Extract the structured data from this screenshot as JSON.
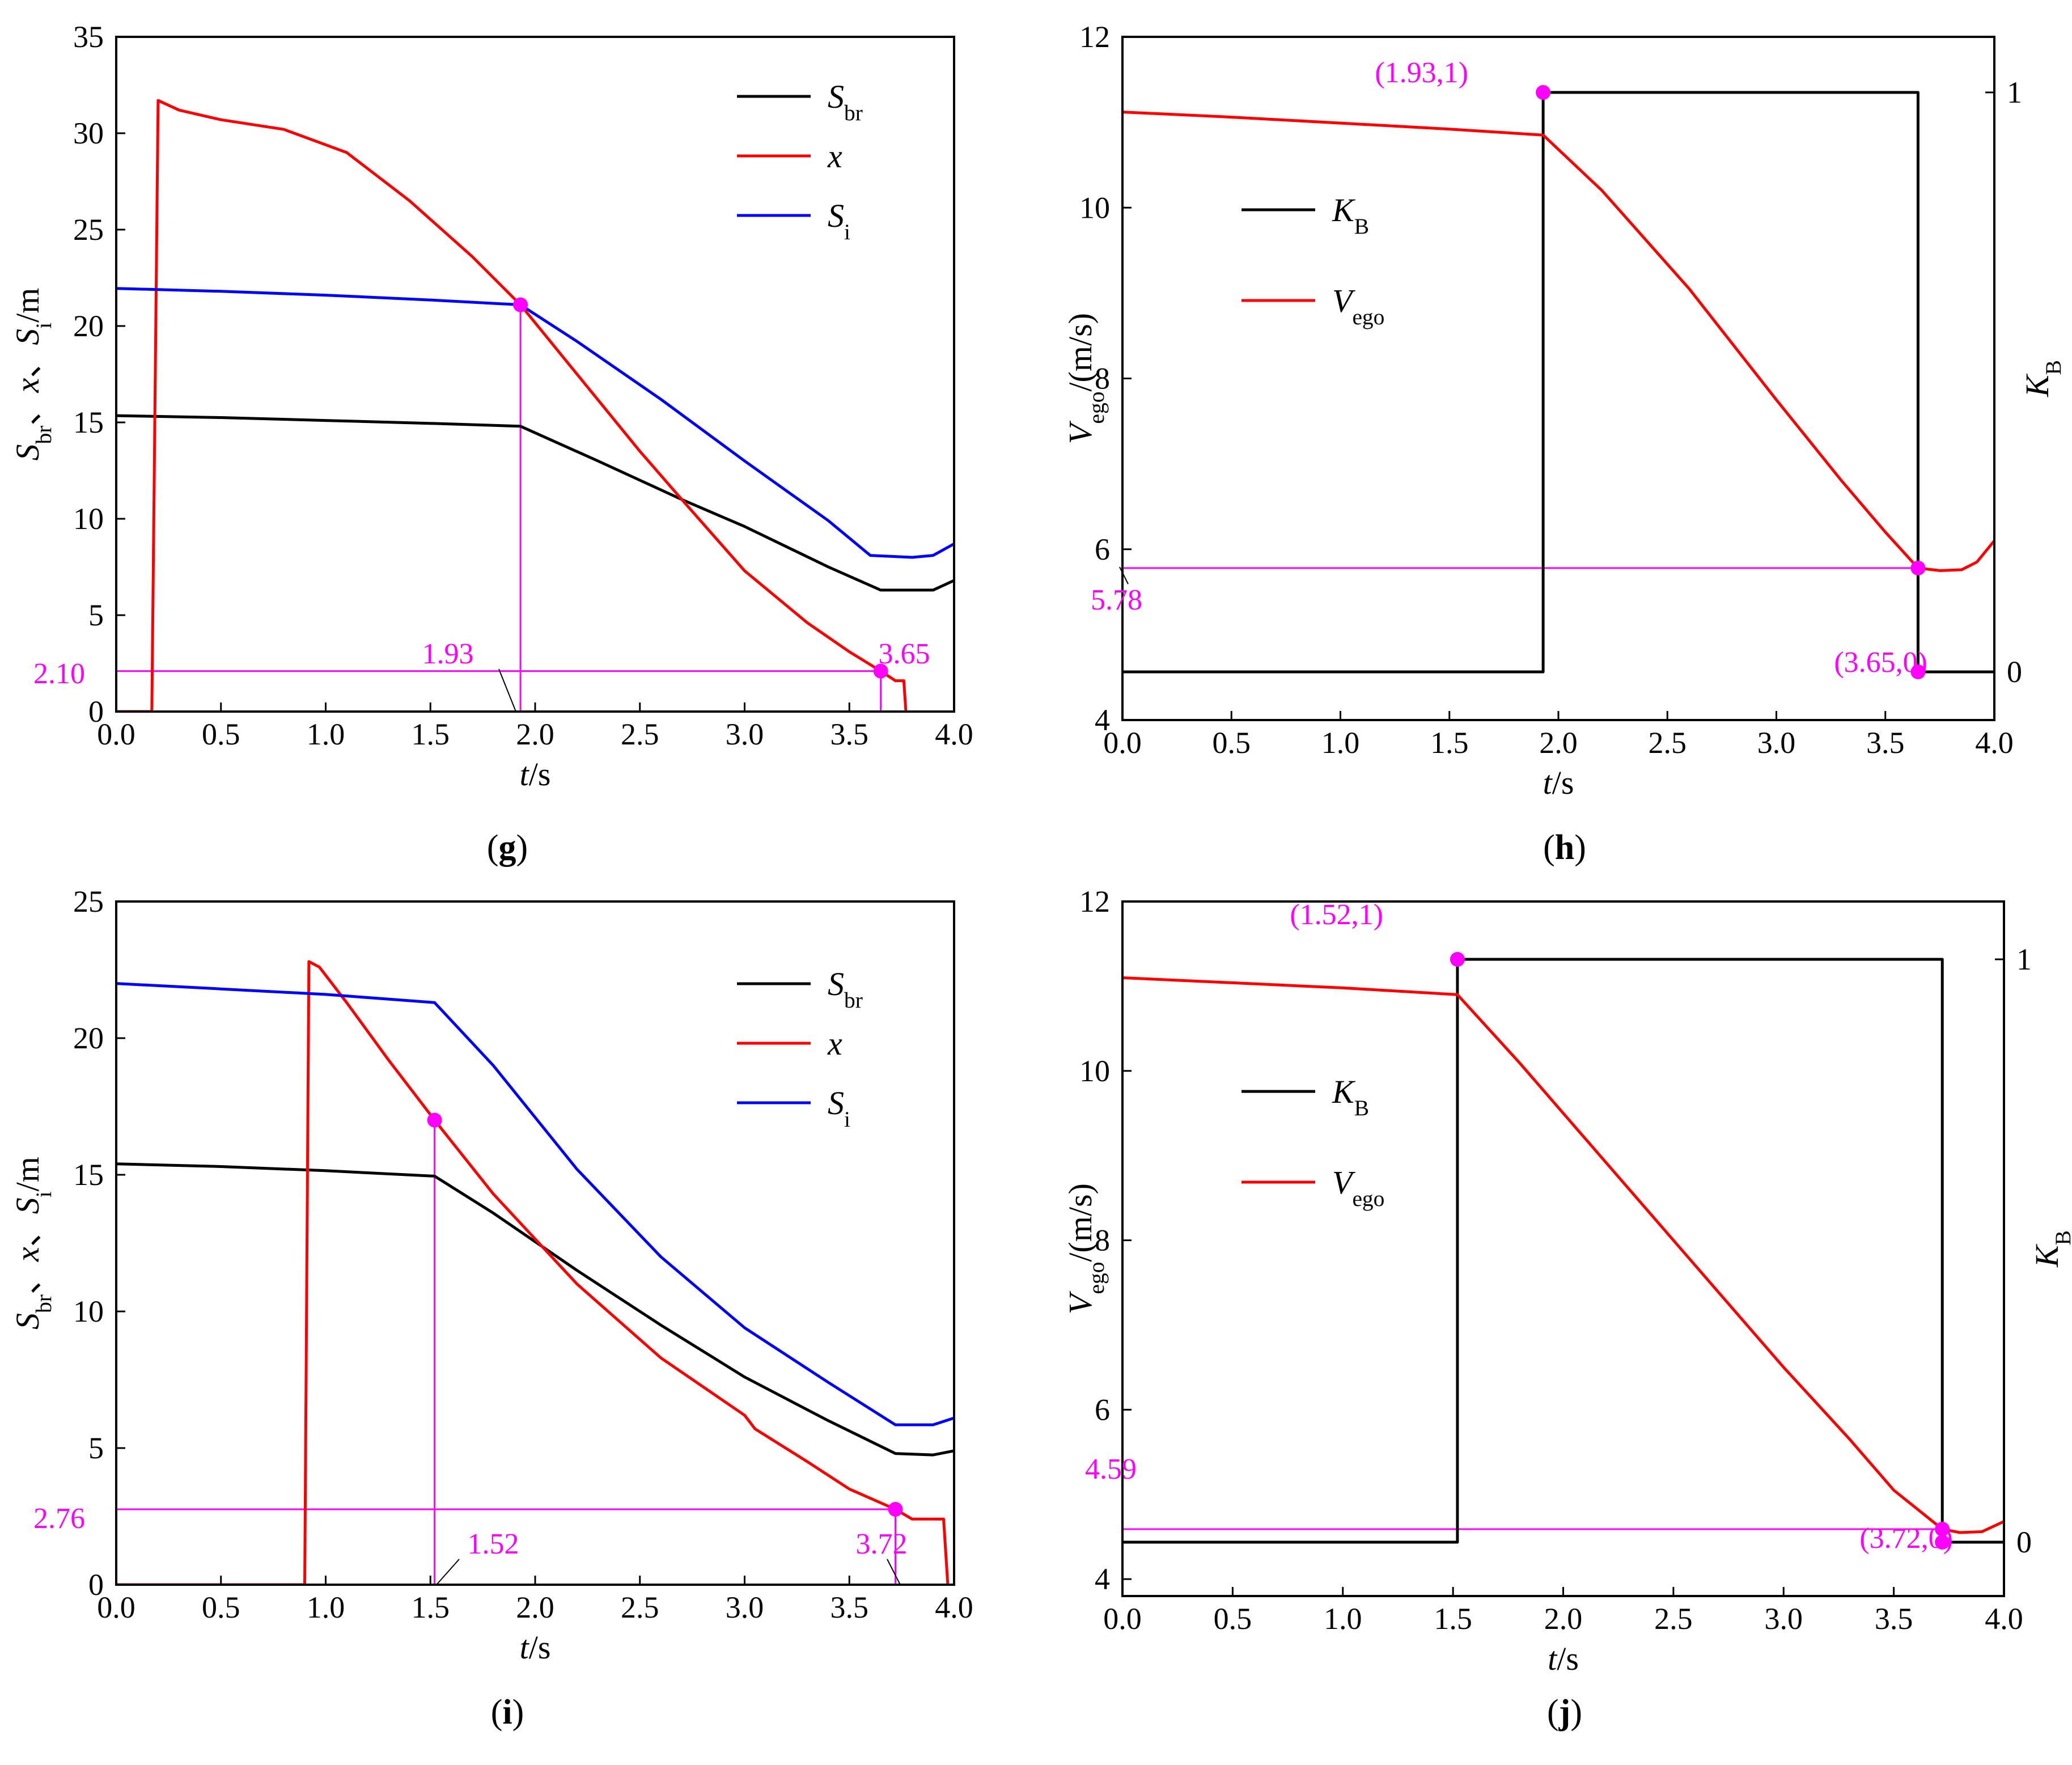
{
  "figure": {
    "colors": {
      "black": "#000000",
      "red": "#ff0000",
      "blue": "#0000ff",
      "magenta": "#ff00ff"
    }
  },
  "chart_data": [
    {
      "id": "g",
      "type": "line",
      "panel_label": {
        "open": "(",
        "letter": "g",
        "close": ")"
      },
      "xlabel": {
        "var": "t",
        "unit": "/s"
      },
      "ylabel": {
        "p1": "S",
        "s1": "br",
        "p2": "、",
        "p3": "x",
        "p4": "、",
        "p5": "S",
        "s5": "i",
        "p6": "/m"
      },
      "xlim": [
        0,
        4
      ],
      "ylim": [
        0,
        35
      ],
      "xticks": [
        "0.0",
        "0.5",
        "1.0",
        "1.5",
        "2.0",
        "2.5",
        "3.0",
        "3.5",
        "4.0"
      ],
      "yticks": [
        "0",
        "5",
        "10",
        "15",
        "20",
        "25",
        "30",
        "35"
      ],
      "legend": {
        "position": "top-right",
        "entries": [
          {
            "main": "S",
            "sub": "br",
            "italic": true,
            "color": "#000000"
          },
          {
            "main": "x",
            "sub": "",
            "italic": true,
            "color": "#ff0000"
          },
          {
            "main": "S",
            "sub": "i",
            "italic": true,
            "color": "#0000ff"
          }
        ]
      },
      "series": [
        {
          "name": "S_br",
          "color": "#000000",
          "points": [
            [
              0,
              15.35
            ],
            [
              0.5,
              15.25
            ],
            [
              1.0,
              15.1
            ],
            [
              1.5,
              14.95
            ],
            [
              1.93,
              14.8
            ],
            [
              2.3,
              13.0
            ],
            [
              2.7,
              11.0
            ],
            [
              3.0,
              9.6
            ],
            [
              3.4,
              7.5
            ],
            [
              3.65,
              6.3
            ],
            [
              3.9,
              6.3
            ],
            [
              4.0,
              6.8
            ]
          ]
        },
        {
          "name": "x",
          "color": "#ff0000",
          "points": [
            [
              0,
              0
            ],
            [
              0.17,
              0
            ],
            [
              0.2,
              31.7
            ],
            [
              0.3,
              31.2
            ],
            [
              0.5,
              30.7
            ],
            [
              0.8,
              30.2
            ],
            [
              1.1,
              29.0
            ],
            [
              1.4,
              26.5
            ],
            [
              1.7,
              23.6
            ],
            [
              1.93,
              21.1
            ],
            [
              2.2,
              17.5
            ],
            [
              2.5,
              13.5
            ],
            [
              2.7,
              11.0
            ],
            [
              3.0,
              7.3
            ],
            [
              3.3,
              4.6
            ],
            [
              3.5,
              3.1
            ],
            [
              3.65,
              2.1
            ],
            [
              3.72,
              1.6
            ],
            [
              3.76,
              1.6
            ],
            [
              3.77,
              0
            ]
          ]
        },
        {
          "name": "S_i",
          "color": "#0000ff",
          "points": [
            [
              0,
              21.95
            ],
            [
              0.5,
              21.8
            ],
            [
              1.0,
              21.6
            ],
            [
              1.5,
              21.35
            ],
            [
              1.93,
              21.1
            ],
            [
              2.2,
              19.2
            ],
            [
              2.6,
              16.2
            ],
            [
              3.0,
              13.0
            ],
            [
              3.4,
              9.9
            ],
            [
              3.6,
              8.1
            ],
            [
              3.8,
              8.0
            ],
            [
              3.9,
              8.1
            ],
            [
              4.0,
              8.7
            ]
          ]
        }
      ],
      "markers": [
        {
          "x": 1.93,
          "y": 21.1
        },
        {
          "x": 3.65,
          "y": 2.1
        }
      ],
      "guides": [
        {
          "from": [
            1.93,
            0
          ],
          "to": [
            1.93,
            21.1
          ]
        },
        {
          "from": [
            0,
            2.1
          ],
          "to": [
            3.65,
            2.1
          ]
        },
        {
          "from": [
            3.65,
            0
          ],
          "to": [
            3.65,
            2.1
          ]
        }
      ],
      "annotations": [
        {
          "text": "1.93"
        },
        {
          "text": "3.65"
        },
        {
          "text": "2.10"
        }
      ]
    },
    {
      "id": "h",
      "type": "line",
      "panel_label": {
        "open": "(",
        "letter": "h",
        "close": ")"
      },
      "xlabel": {
        "var": "t",
        "unit": "/s"
      },
      "ylabel_left": {
        "p1": "V",
        "s1": "ego",
        "p2": "/(m/s)"
      },
      "ylabel_right": {
        "p1": "K",
        "s1": "B"
      },
      "xlim": [
        0,
        4
      ],
      "ylim": [
        4,
        12
      ],
      "ylim_right": [
        -0.1,
        1.1
      ],
      "xticks": [
        "0.0",
        "0.5",
        "1.0",
        "1.5",
        "2.0",
        "2.5",
        "3.0",
        "3.5",
        "4.0"
      ],
      "yticks": [
        "4",
        "6",
        "8",
        "10",
        "12"
      ],
      "yticks_right": [
        "0",
        "1"
      ],
      "legend": {
        "position": "left",
        "entries": [
          {
            "main": "K",
            "sub": "B",
            "italic": true,
            "color": "#000000"
          },
          {
            "main": "V",
            "sub": "ego",
            "italic": true,
            "color": "#ff0000"
          }
        ]
      },
      "series": [
        {
          "name": "K_B",
          "axis": "right",
          "color": "#000000",
          "points": [
            [
              0,
              0
            ],
            [
              1.93,
              0
            ],
            [
              1.93,
              1
            ],
            [
              3.65,
              1
            ],
            [
              3.65,
              0
            ],
            [
              4.0,
              0
            ]
          ]
        },
        {
          "name": "V_ego",
          "axis": "left",
          "color": "#ff0000",
          "points": [
            [
              0,
              11.12
            ],
            [
              0.5,
              11.06
            ],
            [
              1.0,
              10.99
            ],
            [
              1.5,
              10.92
            ],
            [
              1.93,
              10.85
            ],
            [
              2.2,
              10.2
            ],
            [
              2.6,
              9.05
            ],
            [
              3.0,
              7.75
            ],
            [
              3.3,
              6.8
            ],
            [
              3.5,
              6.2
            ],
            [
              3.65,
              5.78
            ],
            [
              3.75,
              5.75
            ],
            [
              3.85,
              5.76
            ],
            [
              3.92,
              5.85
            ],
            [
              4.0,
              6.1
            ]
          ]
        }
      ],
      "markers": [
        {
          "x": 1.93,
          "y": 1,
          "axis": "right"
        },
        {
          "x": 3.65,
          "y": 5.78,
          "axis": "left"
        },
        {
          "x": 3.65,
          "y": 0,
          "axis": "right"
        }
      ],
      "guides": [
        {
          "from": [
            0,
            5.78
          ],
          "to": [
            3.65,
            5.78
          ]
        }
      ],
      "annotations": [
        {
          "text": "(1.93,1)"
        },
        {
          "text": "(3.65,0)"
        },
        {
          "text": "5.78"
        }
      ]
    },
    {
      "id": "i",
      "type": "line",
      "panel_label": {
        "open": "(",
        "letter": "i",
        "close": ")"
      },
      "xlabel": {
        "var": "t",
        "unit": "/s"
      },
      "ylabel": {
        "p1": "S",
        "s1": "br",
        "p2": "、",
        "p3": "x",
        "p4": "、",
        "p5": "S",
        "s5": "i",
        "p6": "/m"
      },
      "xlim": [
        0,
        4
      ],
      "ylim": [
        0,
        25
      ],
      "xticks": [
        "0.0",
        "0.5",
        "1.0",
        "1.5",
        "2.0",
        "2.5",
        "3.0",
        "3.5",
        "4.0"
      ],
      "yticks": [
        "0",
        "5",
        "10",
        "15",
        "20",
        "25"
      ],
      "legend": {
        "position": "top-right",
        "entries": [
          {
            "main": "S",
            "sub": "br",
            "italic": true,
            "color": "#000000"
          },
          {
            "main": "x",
            "sub": "",
            "italic": true,
            "color": "#ff0000"
          },
          {
            "main": "S",
            "sub": "i",
            "italic": true,
            "color": "#0000ff"
          }
        ]
      },
      "series": [
        {
          "name": "S_br",
          "color": "#000000",
          "points": [
            [
              0,
              15.4
            ],
            [
              0.5,
              15.3
            ],
            [
              1.0,
              15.15
            ],
            [
              1.52,
              14.95
            ],
            [
              1.8,
              13.6
            ],
            [
              2.2,
              11.5
            ],
            [
              2.6,
              9.5
            ],
            [
              3.0,
              7.6
            ],
            [
              3.4,
              6.0
            ],
            [
              3.72,
              4.8
            ],
            [
              3.9,
              4.75
            ],
            [
              4.0,
              4.9
            ]
          ]
        },
        {
          "name": "x",
          "color": "#ff0000",
          "points": [
            [
              0,
              0
            ],
            [
              0.9,
              0
            ],
            [
              0.92,
              22.8
            ],
            [
              0.97,
              22.6
            ],
            [
              1.1,
              21.3
            ],
            [
              1.3,
              19.2
            ],
            [
              1.52,
              17.0
            ],
            [
              1.8,
              14.3
            ],
            [
              2.2,
              11.0
            ],
            [
              2.6,
              8.3
            ],
            [
              3.0,
              6.2
            ],
            [
              3.05,
              5.7
            ],
            [
              3.3,
              4.5
            ],
            [
              3.5,
              3.5
            ],
            [
              3.72,
              2.76
            ],
            [
              3.8,
              2.4
            ],
            [
              3.95,
              2.4
            ],
            [
              3.97,
              0
            ]
          ]
        },
        {
          "name": "S_i",
          "color": "#0000ff",
          "points": [
            [
              0,
              22.0
            ],
            [
              0.5,
              21.8
            ],
            [
              1.0,
              21.6
            ],
            [
              1.52,
              21.3
            ],
            [
              1.8,
              19.0
            ],
            [
              2.2,
              15.2
            ],
            [
              2.6,
              12.0
            ],
            [
              3.0,
              9.4
            ],
            [
              3.4,
              7.4
            ],
            [
              3.72,
              5.85
            ],
            [
              3.9,
              5.85
            ],
            [
              4.0,
              6.1
            ]
          ]
        }
      ],
      "markers": [
        {
          "x": 1.52,
          "y": 17.0
        },
        {
          "x": 3.72,
          "y": 2.76
        }
      ],
      "guides": [
        {
          "from": [
            1.52,
            0
          ],
          "to": [
            1.52,
            17.0
          ]
        },
        {
          "from": [
            0,
            2.76
          ],
          "to": [
            3.72,
            2.76
          ]
        },
        {
          "from": [
            3.72,
            0
          ],
          "to": [
            3.72,
            2.76
          ]
        }
      ],
      "annotations": [
        {
          "text": "1.52"
        },
        {
          "text": "3.72"
        },
        {
          "text": "2.76"
        }
      ]
    },
    {
      "id": "j",
      "type": "line",
      "panel_label": {
        "open": "(",
        "letter": "j",
        "close": ")"
      },
      "xlabel": {
        "var": "t",
        "unit": "/s"
      },
      "ylabel_left": {
        "p1": "V",
        "s1": "ego",
        "p2": "/(m/s)"
      },
      "ylabel_right": {
        "p1": "K",
        "s1": "B"
      },
      "xlim": [
        0,
        4
      ],
      "ylim": [
        3.8,
        12
      ],
      "ylim_right": [
        -0.1,
        1.1
      ],
      "xticks": [
        "0.0",
        "0.5",
        "1.0",
        "1.5",
        "2.0",
        "2.5",
        "3.0",
        "3.5",
        "4.0"
      ],
      "yticks": [
        "4",
        "6",
        "8",
        "10",
        "12"
      ],
      "yticks_right": [
        "0",
        "1"
      ],
      "legend": {
        "position": "left",
        "entries": [
          {
            "main": "K",
            "sub": "B",
            "italic": true,
            "color": "#000000"
          },
          {
            "main": "V",
            "sub": "ego",
            "italic": true,
            "color": "#ff0000"
          }
        ]
      },
      "series": [
        {
          "name": "K_B",
          "axis": "right",
          "color": "#000000",
          "points": [
            [
              0,
              0
            ],
            [
              1.52,
              0
            ],
            [
              1.52,
              1
            ],
            [
              3.72,
              1
            ],
            [
              3.72,
              0
            ],
            [
              4.0,
              0
            ]
          ]
        },
        {
          "name": "V_ego",
          "axis": "left",
          "color": "#ff0000",
          "points": [
            [
              0,
              11.1
            ],
            [
              0.5,
              11.04
            ],
            [
              1.0,
              10.98
            ],
            [
              1.52,
              10.9
            ],
            [
              1.8,
              10.1
            ],
            [
              2.2,
              8.9
            ],
            [
              2.6,
              7.7
            ],
            [
              3.0,
              6.5
            ],
            [
              3.3,
              5.65
            ],
            [
              3.5,
              5.05
            ],
            [
              3.72,
              4.59
            ],
            [
              3.8,
              4.55
            ],
            [
              3.9,
              4.56
            ],
            [
              4.0,
              4.68
            ]
          ]
        }
      ],
      "markers": [
        {
          "x": 1.52,
          "y": 1,
          "axis": "right"
        },
        {
          "x": 3.72,
          "y": 4.59,
          "axis": "left"
        },
        {
          "x": 3.72,
          "y": 0,
          "axis": "right"
        }
      ],
      "guides": [
        {
          "from": [
            0,
            4.59
          ],
          "to": [
            3.72,
            4.59
          ]
        }
      ],
      "annotations": [
        {
          "text": "(1.52,1)"
        },
        {
          "text": "(3.72,0)"
        },
        {
          "text": "4.59"
        }
      ]
    }
  ]
}
